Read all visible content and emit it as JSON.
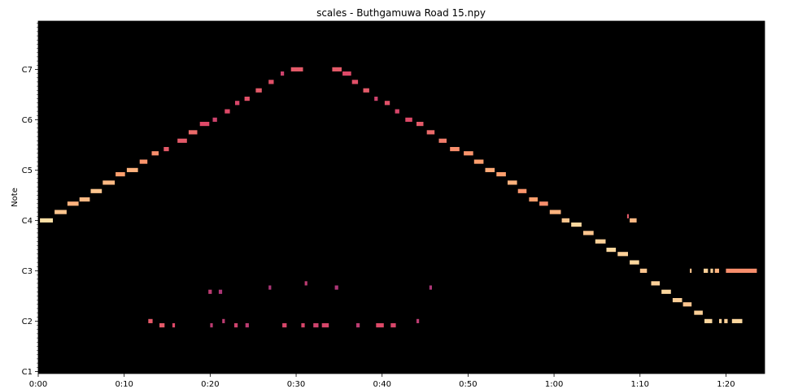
{
  "chart_data": {
    "type": "heatmap",
    "title": "scales - Buthgamuwa Road 15.npy",
    "xlabel": "",
    "ylabel": "Note",
    "x_unit": "seconds",
    "y_unit": "MIDI note number",
    "xlim": [
      0,
      84.5
    ],
    "ylim": [
      23.5,
      107.5
    ],
    "x_ticks": [
      {
        "value": 0,
        "label": "0:00"
      },
      {
        "value": 10,
        "label": "0:10"
      },
      {
        "value": 20,
        "label": "0:20"
      },
      {
        "value": 30,
        "label": "0:30"
      },
      {
        "value": 40,
        "label": "0:40"
      },
      {
        "value": 50,
        "label": "0:50"
      },
      {
        "value": 60,
        "label": "1:00"
      },
      {
        "value": 70,
        "label": "1:10"
      },
      {
        "value": 80,
        "label": "1:20"
      }
    ],
    "y_ticks": [
      {
        "value": 24,
        "label": "C1"
      },
      {
        "value": 36,
        "label": "C2"
      },
      {
        "value": 48,
        "label": "C3"
      },
      {
        "value": 60,
        "label": "C4"
      },
      {
        "value": 72,
        "label": "C5"
      },
      {
        "value": 84,
        "label": "C6"
      },
      {
        "value": 96,
        "label": "C7"
      }
    ],
    "background_color": "#000000",
    "colormap": [
      "#3b0f70",
      "#8c2981",
      "#de4968",
      "#fe9f6d",
      "#fcfdbf"
    ],
    "grid": false,
    "ascending_notes": [
      {
        "t0": 0.2,
        "t1": 1.7,
        "note": 60,
        "v": 0.92
      },
      {
        "t0": 1.9,
        "t1": 3.3,
        "note": 62,
        "v": 0.85
      },
      {
        "t0": 3.4,
        "t1": 4.7,
        "note": 64,
        "v": 0.8
      },
      {
        "t0": 4.8,
        "t1": 6.0,
        "note": 65,
        "v": 0.82
      },
      {
        "t0": 6.1,
        "t1": 7.4,
        "note": 67,
        "v": 0.85
      },
      {
        "t0": 7.5,
        "t1": 8.9,
        "note": 69,
        "v": 0.82
      },
      {
        "t0": 9.0,
        "t1": 10.1,
        "note": 71,
        "v": 0.75
      },
      {
        "t0": 10.3,
        "t1": 11.6,
        "note": 72,
        "v": 0.8
      },
      {
        "t0": 11.8,
        "t1": 12.7,
        "note": 74,
        "v": 0.72
      },
      {
        "t0": 13.2,
        "t1": 14.0,
        "note": 76,
        "v": 0.7
      },
      {
        "t0": 14.6,
        "t1": 15.2,
        "note": 77,
        "v": 0.55
      },
      {
        "t0": 16.2,
        "t1": 17.3,
        "note": 79,
        "v": 0.55
      },
      {
        "t0": 17.5,
        "t1": 18.5,
        "note": 81,
        "v": 0.6
      },
      {
        "t0": 18.8,
        "t1": 19.9,
        "note": 83,
        "v": 0.5
      },
      {
        "t0": 20.3,
        "t1": 20.8,
        "note": 84,
        "v": 0.45
      },
      {
        "t0": 21.7,
        "t1": 22.3,
        "note": 86,
        "v": 0.5
      },
      {
        "t0": 22.9,
        "t1": 23.4,
        "note": 88,
        "v": 0.48
      },
      {
        "t0": 24.0,
        "t1": 24.6,
        "note": 89,
        "v": 0.52
      },
      {
        "t0": 25.3,
        "t1": 26.0,
        "note": 91,
        "v": 0.55
      },
      {
        "t0": 26.8,
        "t1": 27.4,
        "note": 93,
        "v": 0.52
      },
      {
        "t0": 28.2,
        "t1": 28.6,
        "note": 95,
        "v": 0.45
      },
      {
        "t0": 29.4,
        "t1": 30.8,
        "note": 96,
        "v": 0.55
      }
    ],
    "descending_notes": [
      {
        "t0": 34.2,
        "t1": 35.3,
        "note": 96,
        "v": 0.55
      },
      {
        "t0": 35.4,
        "t1": 36.4,
        "note": 95,
        "v": 0.5
      },
      {
        "t0": 36.5,
        "t1": 37.2,
        "note": 93,
        "v": 0.52
      },
      {
        "t0": 37.8,
        "t1": 38.5,
        "note": 91,
        "v": 0.55
      },
      {
        "t0": 39.1,
        "t1": 39.5,
        "note": 89,
        "v": 0.45
      },
      {
        "t0": 40.3,
        "t1": 40.9,
        "note": 88,
        "v": 0.52
      },
      {
        "t0": 41.5,
        "t1": 42.0,
        "note": 86,
        "v": 0.48
      },
      {
        "t0": 42.7,
        "t1": 43.5,
        "note": 84,
        "v": 0.5
      },
      {
        "t0": 44.0,
        "t1": 44.8,
        "note": 83,
        "v": 0.55
      },
      {
        "t0": 45.2,
        "t1": 46.1,
        "note": 81,
        "v": 0.6
      },
      {
        "t0": 46.6,
        "t1": 47.5,
        "note": 79,
        "v": 0.65
      },
      {
        "t0": 47.9,
        "t1": 49.0,
        "note": 77,
        "v": 0.7
      },
      {
        "t0": 49.5,
        "t1": 50.6,
        "note": 76,
        "v": 0.72
      },
      {
        "t0": 50.7,
        "t1": 51.8,
        "note": 74,
        "v": 0.75
      },
      {
        "t0": 52.0,
        "t1": 53.1,
        "note": 72,
        "v": 0.78
      },
      {
        "t0": 53.3,
        "t1": 54.4,
        "note": 71,
        "v": 0.75
      },
      {
        "t0": 54.6,
        "t1": 55.7,
        "note": 69,
        "v": 0.8
      },
      {
        "t0": 55.8,
        "t1": 56.8,
        "note": 67,
        "v": 0.72
      },
      {
        "t0": 57.1,
        "t1": 58.1,
        "note": 65,
        "v": 0.75
      },
      {
        "t0": 58.3,
        "t1": 59.3,
        "note": 64,
        "v": 0.7
      },
      {
        "t0": 59.5,
        "t1": 60.8,
        "note": 62,
        "v": 0.8
      },
      {
        "t0": 60.9,
        "t1": 61.8,
        "note": 60,
        "v": 0.85
      },
      {
        "t0": 62.0,
        "t1": 63.2,
        "note": 59,
        "v": 0.9
      },
      {
        "t0": 63.4,
        "t1": 64.6,
        "note": 57,
        "v": 0.85
      },
      {
        "t0": 64.8,
        "t1": 66.0,
        "note": 55,
        "v": 0.88
      },
      {
        "t0": 66.1,
        "t1": 67.2,
        "note": 53,
        "v": 0.9
      },
      {
        "t0": 67.4,
        "t1": 68.6,
        "note": 52,
        "v": 0.88
      },
      {
        "t0": 68.8,
        "t1": 69.9,
        "note": 50,
        "v": 0.9
      },
      {
        "t0": 70.0,
        "t1": 70.8,
        "note": 48,
        "v": 0.85
      },
      {
        "t0": 71.3,
        "t1": 72.3,
        "note": 45,
        "v": 0.88
      },
      {
        "t0": 72.5,
        "t1": 73.6,
        "note": 43,
        "v": 0.9
      },
      {
        "t0": 73.8,
        "t1": 74.9,
        "note": 41,
        "v": 0.88
      },
      {
        "t0": 75.0,
        "t1": 76.0,
        "note": 40,
        "v": 0.85
      },
      {
        "t0": 76.3,
        "t1": 77.3,
        "note": 38,
        "v": 0.88
      },
      {
        "t0": 77.5,
        "t1": 78.4,
        "note": 36,
        "v": 0.9
      },
      {
        "t0": 79.2,
        "t1": 79.5,
        "note": 36,
        "v": 0.88
      },
      {
        "t0": 79.8,
        "t1": 80.2,
        "note": 36,
        "v": 0.88
      },
      {
        "t0": 80.7,
        "t1": 81.9,
        "note": 36,
        "v": 0.9
      }
    ],
    "sustained_notes": [
      {
        "t0": 75.8,
        "t1": 76.0,
        "note": 48,
        "v": 0.85
      },
      {
        "t0": 77.4,
        "t1": 77.9,
        "note": 48,
        "v": 0.88
      },
      {
        "t0": 78.2,
        "t1": 78.5,
        "note": 48,
        "v": 0.88
      },
      {
        "t0": 78.7,
        "t1": 79.2,
        "note": 48,
        "v": 0.8
      },
      {
        "t0": 80.0,
        "t1": 83.6,
        "note": 48,
        "v": 0.7
      },
      {
        "t0": 68.8,
        "t1": 69.6,
        "note": 60,
        "v": 0.82
      },
      {
        "t0": 68.5,
        "t1": 68.7,
        "note": 61,
        "v": 0.55
      }
    ],
    "low_register_notes": [
      {
        "t0": 14.1,
        "t1": 14.7,
        "note": 35,
        "v": 0.55
      },
      {
        "t0": 15.6,
        "t1": 15.9,
        "note": 35,
        "v": 0.5
      },
      {
        "t0": 12.8,
        "t1": 13.3,
        "note": 36,
        "v": 0.55
      },
      {
        "t0": 20.0,
        "t1": 20.3,
        "note": 35,
        "v": 0.4
      },
      {
        "t0": 21.4,
        "t1": 21.7,
        "note": 36,
        "v": 0.4
      },
      {
        "t0": 22.8,
        "t1": 23.2,
        "note": 35,
        "v": 0.45
      },
      {
        "t0": 24.1,
        "t1": 24.5,
        "note": 35,
        "v": 0.4
      },
      {
        "t0": 28.4,
        "t1": 28.9,
        "note": 35,
        "v": 0.48
      },
      {
        "t0": 30.6,
        "t1": 31.0,
        "note": 35,
        "v": 0.48
      },
      {
        "t0": 32.0,
        "t1": 32.6,
        "note": 35,
        "v": 0.45
      },
      {
        "t0": 33.0,
        "t1": 33.8,
        "note": 35,
        "v": 0.48
      },
      {
        "t0": 37.0,
        "t1": 37.4,
        "note": 35,
        "v": 0.4
      },
      {
        "t0": 39.3,
        "t1": 40.2,
        "note": 35,
        "v": 0.5
      },
      {
        "t0": 41.0,
        "t1": 41.6,
        "note": 35,
        "v": 0.48
      },
      {
        "t0": 44.0,
        "t1": 44.3,
        "note": 36,
        "v": 0.4
      },
      {
        "t0": 19.8,
        "t1": 20.2,
        "note": 43,
        "v": 0.4
      },
      {
        "t0": 21.0,
        "t1": 21.4,
        "note": 43,
        "v": 0.35
      },
      {
        "t0": 26.8,
        "t1": 27.1,
        "note": 44,
        "v": 0.35
      },
      {
        "t0": 31.0,
        "t1": 31.3,
        "note": 45,
        "v": 0.4
      },
      {
        "t0": 34.5,
        "t1": 34.9,
        "note": 44,
        "v": 0.35
      },
      {
        "t0": 45.5,
        "t1": 45.8,
        "note": 44,
        "v": 0.35
      }
    ]
  }
}
